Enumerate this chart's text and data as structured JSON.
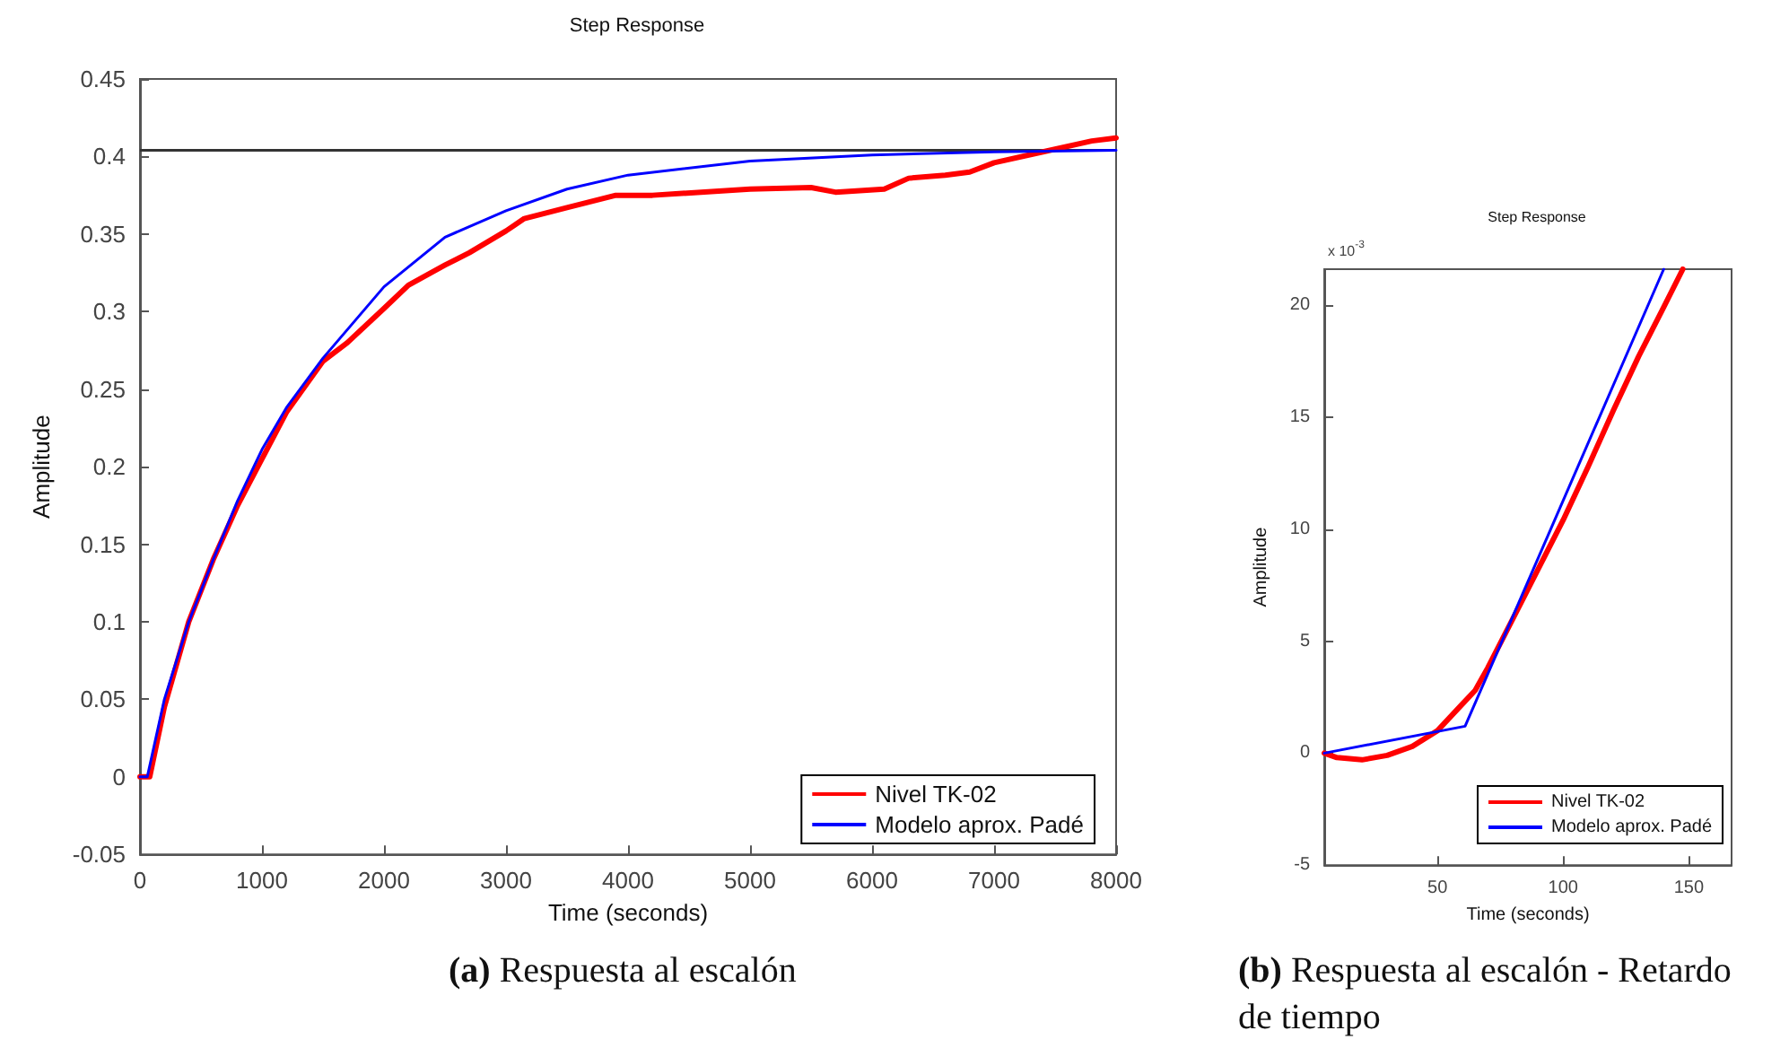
{
  "chart_data": [
    {
      "type": "line",
      "title": "Step Response",
      "xlabel": "Time (seconds)",
      "ylabel": "Amplitude",
      "xlim": [
        0,
        8000
      ],
      "ylim": [
        -0.05,
        0.45
      ],
      "xticks": [
        0,
        1000,
        2000,
        3000,
        4000,
        5000,
        6000,
        7000,
        8000
      ],
      "yticks": [
        -0.05,
        0,
        0.05,
        0.1,
        0.15,
        0.2,
        0.25,
        0.3,
        0.35,
        0.4,
        0.45
      ],
      "grid": false,
      "legend": "bottom right",
      "marker": "none",
      "line_style": "solid",
      "ref_lines": [
        {
          "axis": "y",
          "value": 0.404,
          "color": "#333333"
        }
      ],
      "annotations": [
        "(a) Respuesta al escalón"
      ],
      "series": [
        {
          "name": "Nivel TK-02",
          "color": "#ff0000",
          "x": [
            0,
            80,
            200,
            400,
            600,
            800,
            1000,
            1200,
            1500,
            1700,
            2000,
            2200,
            2500,
            2700,
            3000,
            3150,
            3500,
            3900,
            4200,
            5000,
            5500,
            5700,
            6100,
            6300,
            6600,
            6800,
            7000,
            7400,
            7800,
            8000
          ],
          "values": [
            0,
            0,
            0.045,
            0.1,
            0.14,
            0.175,
            0.205,
            0.235,
            0.268,
            0.28,
            0.302,
            0.317,
            0.33,
            0.338,
            0.352,
            0.36,
            0.367,
            0.375,
            0.375,
            0.379,
            0.38,
            0.377,
            0.379,
            0.386,
            0.388,
            0.39,
            0.396,
            0.403,
            0.41,
            0.412
          ]
        },
        {
          "name": "Modelo aprox. Padé",
          "color": "#0000ff",
          "x": [
            0,
            60,
            200,
            400,
            600,
            800,
            1000,
            1200,
            1500,
            2000,
            2500,
            3000,
            3500,
            4000,
            5000,
            6000,
            7000,
            8000
          ],
          "values": [
            0,
            0,
            0.05,
            0.1,
            0.14,
            0.178,
            0.211,
            0.238,
            0.27,
            0.316,
            0.348,
            0.365,
            0.379,
            0.388,
            0.397,
            0.401,
            0.403,
            0.404
          ]
        }
      ]
    },
    {
      "type": "line",
      "title": "Step Response",
      "xlabel": "Time (seconds)",
      "ylabel": "Amplitude",
      "xlim": [
        5,
        167
      ],
      "ylim": [
        -5,
        21.6
      ],
      "xticks": [
        50,
        100,
        150
      ],
      "yticks": [
        -5,
        0,
        5,
        10,
        15,
        20
      ],
      "grid": false,
      "legend": "bottom right",
      "marker": "none",
      "line_style": "solid",
      "annotations": [
        "x 10$^{-3}$",
        "(b) Respuesta al escalón - Retardo de tiempo"
      ],
      "series": [
        {
          "name": "Nivel TK-02",
          "color": "#ff0000",
          "x": [
            5,
            10,
            20,
            30,
            40,
            50,
            55,
            60,
            65,
            70,
            80,
            90,
            100,
            110,
            120,
            130,
            140,
            147.6
          ],
          "values": [
            0,
            -0.2,
            -0.3,
            -0.1,
            0.3,
            1.0,
            1.6,
            2.2,
            2.8,
            3.8,
            6.0,
            8.2,
            10.4,
            12.8,
            15.3,
            17.7,
            19.9,
            21.6
          ]
        },
        {
          "name": "Modelo aprox. Padé",
          "color": "#0000ff",
          "x": [
            5,
            61,
            140
          ],
          "values": [
            0,
            1.2,
            21.6
          ]
        }
      ]
    }
  ]
}
